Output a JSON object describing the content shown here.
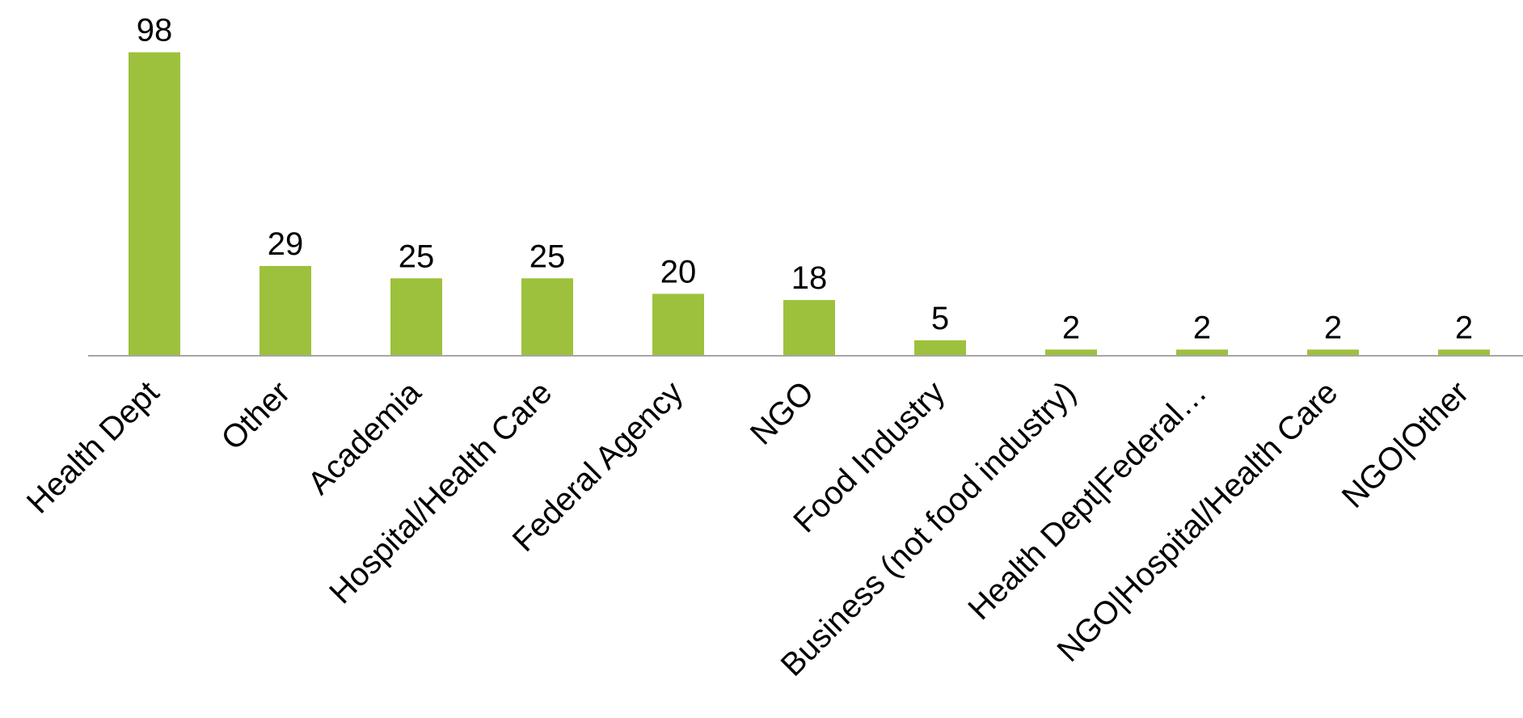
{
  "chart_data": {
    "type": "bar",
    "categories": [
      "Health Dept",
      "Other",
      "Academia",
      "Hospital/Health Care",
      "Federal Agency",
      "NGO",
      "Food Industry",
      "Business (not food industry)",
      "Health Dept|Federal…",
      "NGO|Hospital/Health Care",
      "NGO|Other"
    ],
    "values": [
      98,
      29,
      25,
      25,
      20,
      18,
      5,
      2,
      2,
      2,
      2
    ],
    "title": "",
    "xlabel": "",
    "ylabel": "",
    "ylim": [
      0,
      100
    ],
    "grid": false,
    "legend": "none",
    "data_labels": true,
    "bar_color": "#9DC13C",
    "axis_color": "#A6A6A6"
  }
}
